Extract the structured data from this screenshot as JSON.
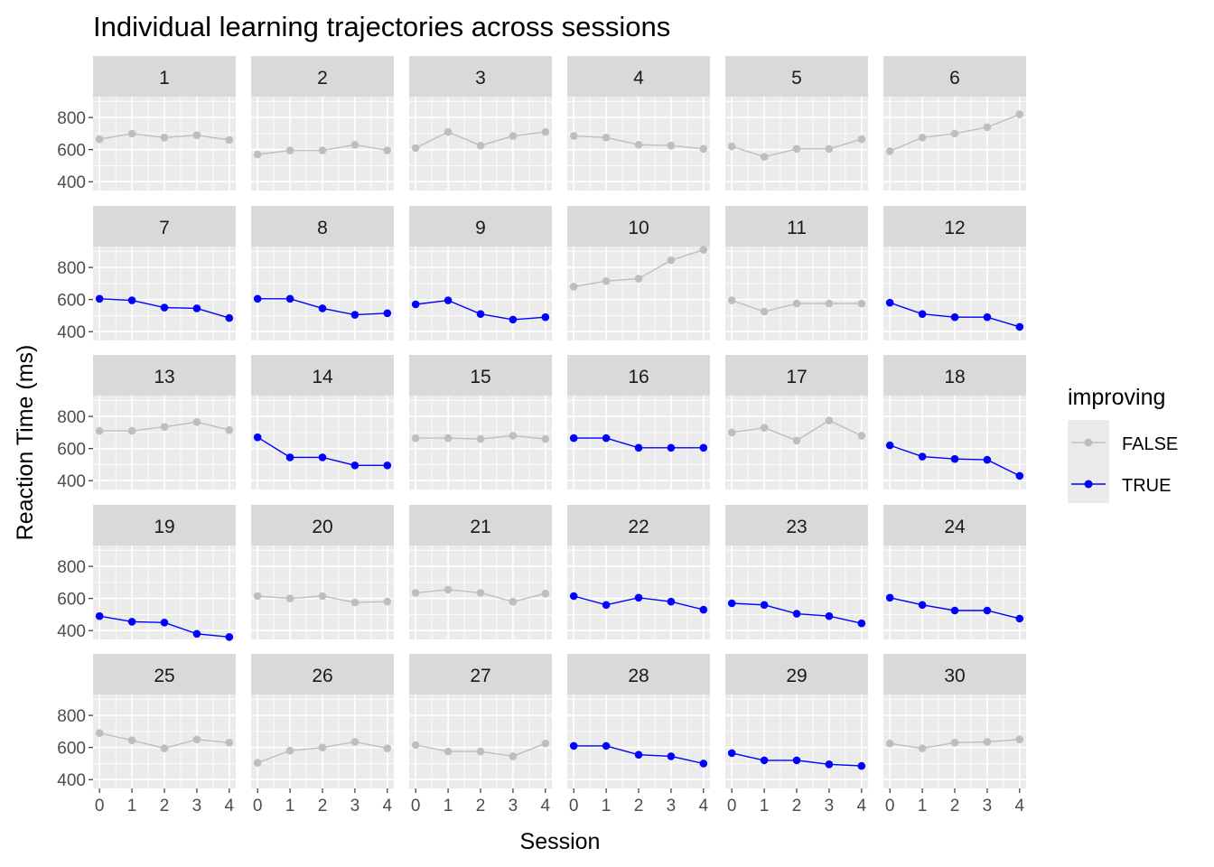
{
  "chart_data": {
    "type": "line",
    "title": "Individual learning trajectories across sessions",
    "xlabel": "Session",
    "ylabel": "Reaction Time (ms)",
    "x": [
      0,
      1,
      2,
      3,
      4
    ],
    "x_ticks": [
      "0",
      "1",
      "2",
      "3",
      "4"
    ],
    "y_ticks": [
      400,
      600,
      800
    ],
    "y_tick_labels": [
      "400",
      "600",
      "800"
    ],
    "ylim": [
      345,
      930
    ],
    "facet_layout": "5 rows x 6 columns, shared axes",
    "grid": true,
    "legend": {
      "title": "improving",
      "position": "right",
      "entries": [
        {
          "label": "FALSE",
          "color": "#bebebe"
        },
        {
          "label": "TRUE",
          "color": "#0000ff"
        }
      ]
    },
    "colors": {
      "FALSE": "#bebebe",
      "TRUE": "#0000ff"
    },
    "panels": [
      {
        "label": "1",
        "improving": "FALSE",
        "values": [
          665,
          700,
          675,
          690,
          660
        ]
      },
      {
        "label": "2",
        "improving": "FALSE",
        "values": [
          570,
          595,
          595,
          630,
          595
        ]
      },
      {
        "label": "3",
        "improving": "FALSE",
        "values": [
          610,
          710,
          625,
          685,
          710
        ]
      },
      {
        "label": "4",
        "improving": "FALSE",
        "values": [
          685,
          675,
          630,
          625,
          605
        ]
      },
      {
        "label": "5",
        "improving": "FALSE",
        "values": [
          620,
          555,
          605,
          605,
          665
        ]
      },
      {
        "label": "6",
        "improving": "FALSE",
        "values": [
          590,
          675,
          700,
          740,
          820
        ]
      },
      {
        "label": "7",
        "improving": "TRUE",
        "values": [
          605,
          595,
          550,
          545,
          485
        ]
      },
      {
        "label": "8",
        "improving": "TRUE",
        "values": [
          605,
          605,
          545,
          505,
          515
        ]
      },
      {
        "label": "9",
        "improving": "TRUE",
        "values": [
          570,
          595,
          510,
          475,
          490
        ]
      },
      {
        "label": "10",
        "improving": "FALSE",
        "values": [
          680,
          715,
          730,
          845,
          910
        ]
      },
      {
        "label": "11",
        "improving": "FALSE",
        "values": [
          595,
          525,
          575,
          575,
          575
        ]
      },
      {
        "label": "12",
        "improving": "TRUE",
        "values": [
          580,
          510,
          490,
          490,
          430
        ]
      },
      {
        "label": "13",
        "improving": "FALSE",
        "values": [
          710,
          710,
          735,
          765,
          715
        ]
      },
      {
        "label": "14",
        "improving": "TRUE",
        "values": [
          670,
          545,
          545,
          495,
          495
        ]
      },
      {
        "label": "15",
        "improving": "FALSE",
        "values": [
          665,
          665,
          660,
          680,
          660
        ]
      },
      {
        "label": "16",
        "improving": "TRUE",
        "values": [
          665,
          665,
          605,
          605,
          605
        ]
      },
      {
        "label": "17",
        "improving": "FALSE",
        "values": [
          700,
          730,
          650,
          775,
          680
        ]
      },
      {
        "label": "18",
        "improving": "TRUE",
        "values": [
          620,
          550,
          535,
          530,
          430
        ]
      },
      {
        "label": "19",
        "improving": "TRUE",
        "values": [
          490,
          455,
          450,
          380,
          360
        ]
      },
      {
        "label": "20",
        "improving": "FALSE",
        "values": [
          615,
          600,
          615,
          575,
          580
        ]
      },
      {
        "label": "21",
        "improving": "FALSE",
        "values": [
          635,
          655,
          635,
          580,
          630
        ]
      },
      {
        "label": "22",
        "improving": "TRUE",
        "values": [
          615,
          560,
          605,
          580,
          530
        ]
      },
      {
        "label": "23",
        "improving": "TRUE",
        "values": [
          570,
          560,
          505,
          490,
          445
        ]
      },
      {
        "label": "24",
        "improving": "TRUE",
        "values": [
          605,
          560,
          525,
          525,
          475
        ]
      },
      {
        "label": "25",
        "improving": "FALSE",
        "values": [
          690,
          645,
          595,
          650,
          630
        ]
      },
      {
        "label": "26",
        "improving": "FALSE",
        "values": [
          505,
          580,
          600,
          635,
          595
        ]
      },
      {
        "label": "27",
        "improving": "FALSE",
        "values": [
          615,
          575,
          575,
          545,
          625
        ]
      },
      {
        "label": "28",
        "improving": "TRUE",
        "values": [
          610,
          610,
          555,
          545,
          500
        ]
      },
      {
        "label": "29",
        "improving": "TRUE",
        "values": [
          565,
          520,
          520,
          495,
          485
        ]
      },
      {
        "label": "30",
        "improving": "FALSE",
        "values": [
          625,
          595,
          630,
          635,
          650
        ]
      }
    ]
  }
}
